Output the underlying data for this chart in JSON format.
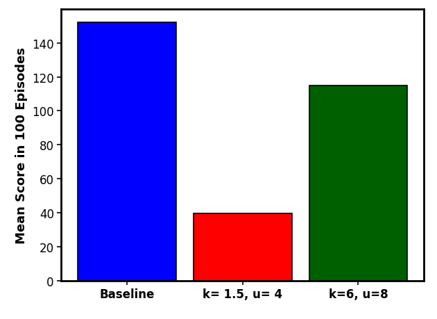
{
  "categories": [
    "Baseline",
    "k= 1.5, u= 4",
    "k=6, u=8"
  ],
  "values": [
    152,
    39.5,
    115
  ],
  "bar_colors": [
    "#0000ff",
    "#ff0000",
    "#006000"
  ],
  "ylabel": "Mean Score in 100 Episodes",
  "ylim": [
    0,
    160
  ],
  "yticks": [
    0,
    20,
    40,
    60,
    80,
    100,
    120,
    140
  ],
  "bar_width": 0.85,
  "background_color": "#ffffff",
  "tick_fontsize": 12,
  "label_fontsize": 13,
  "edge_color": "#000000",
  "edge_linewidth": 1.2,
  "spine_linewidth": 2.0
}
